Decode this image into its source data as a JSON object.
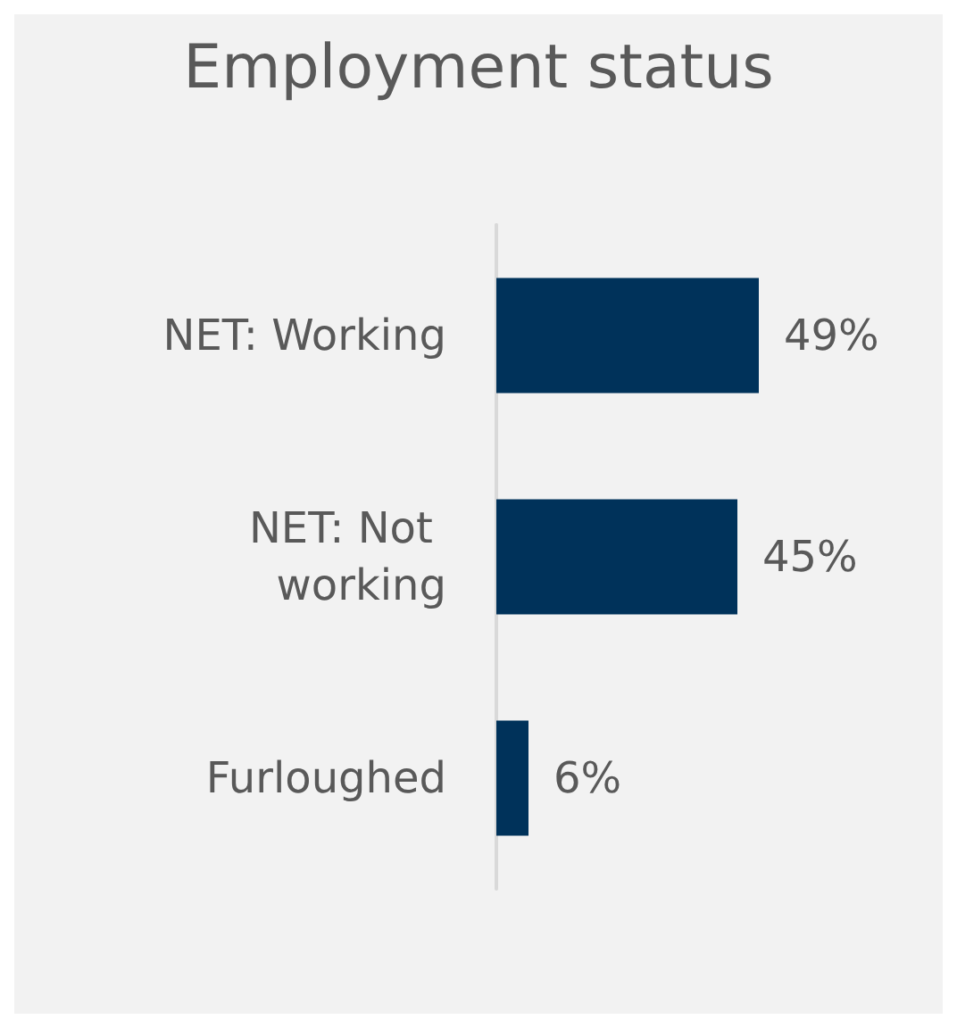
{
  "chart_data": {
    "type": "bar",
    "orientation": "horizontal",
    "title": "Employment status",
    "categories": [
      "NET: Working",
      "NET: Not working",
      "Furloughed"
    ],
    "values": [
      49,
      45,
      6
    ],
    "color": "#00325a",
    "value_labels": [
      "49%",
      "45%",
      "6%"
    ]
  }
}
